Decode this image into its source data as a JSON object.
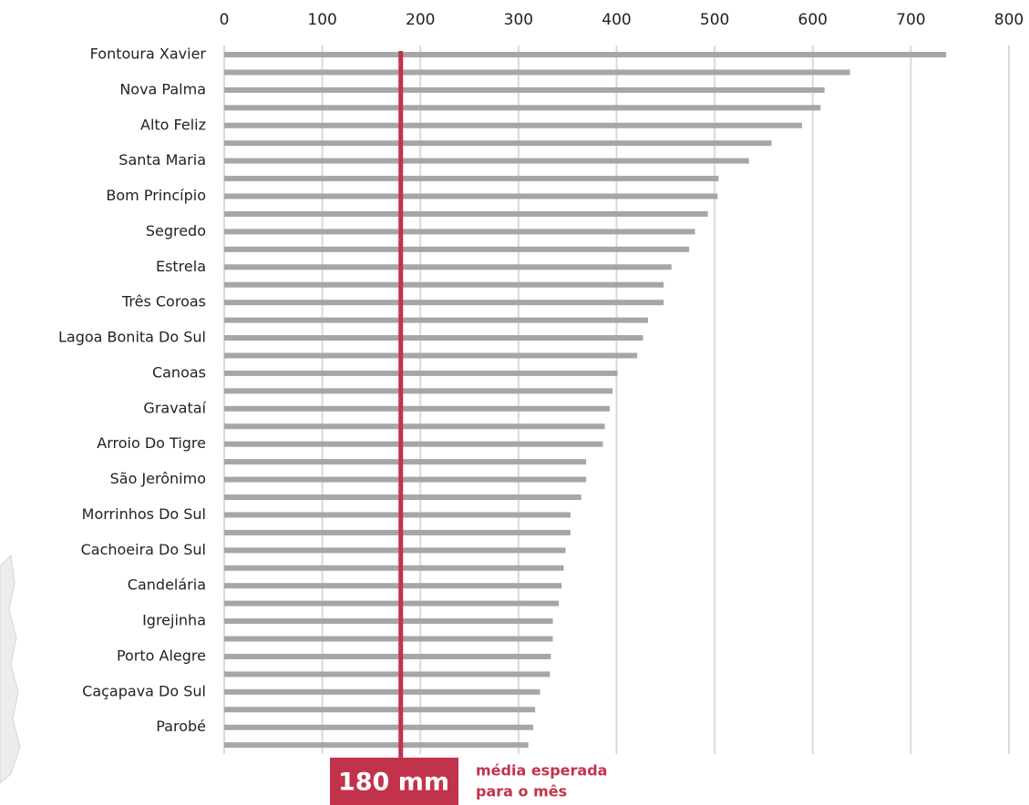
{
  "chart_data": {
    "type": "bar",
    "orientation": "horizontal",
    "categories": [
      "Fontoura Xavier",
      null,
      "Nova Palma",
      null,
      "Alto Feliz",
      null,
      "Santa Maria",
      null,
      "Bom Princípio",
      null,
      "Segredo",
      null,
      "Estrela",
      null,
      "Três Coroas",
      null,
      "Lagoa Bonita Do Sul",
      null,
      "Canoas",
      null,
      "Gravataí",
      null,
      "Arroio Do Tigre",
      null,
      "São Jerônimo",
      null,
      "Morrinhos Do Sul",
      null,
      "Cachoeira Do Sul",
      null,
      "Candelária",
      null,
      "Igrejinha",
      null,
      "Porto Alegre",
      null,
      "Caçapava Do Sul",
      null,
      "Parobé",
      null
    ],
    "values": [
      736,
      638,
      612,
      608,
      589,
      558,
      535,
      504,
      503,
      493,
      480,
      474,
      456,
      448,
      448,
      432,
      427,
      421,
      401,
      396,
      393,
      388,
      386,
      369,
      369,
      364,
      353,
      353,
      348,
      346,
      344,
      341,
      335,
      335,
      333,
      332,
      322,
      317,
      315,
      310
    ],
    "color": "#a6a6a6",
    "xlim": [
      0,
      800
    ],
    "xticks": [
      0,
      100,
      200,
      300,
      400,
      500,
      600,
      700,
      800
    ],
    "grid": true,
    "reference_line": {
      "value": 180,
      "label": "180 mm",
      "color": "#c2334b"
    },
    "annotation": [
      "média esperada",
      "para o mês"
    ]
  }
}
